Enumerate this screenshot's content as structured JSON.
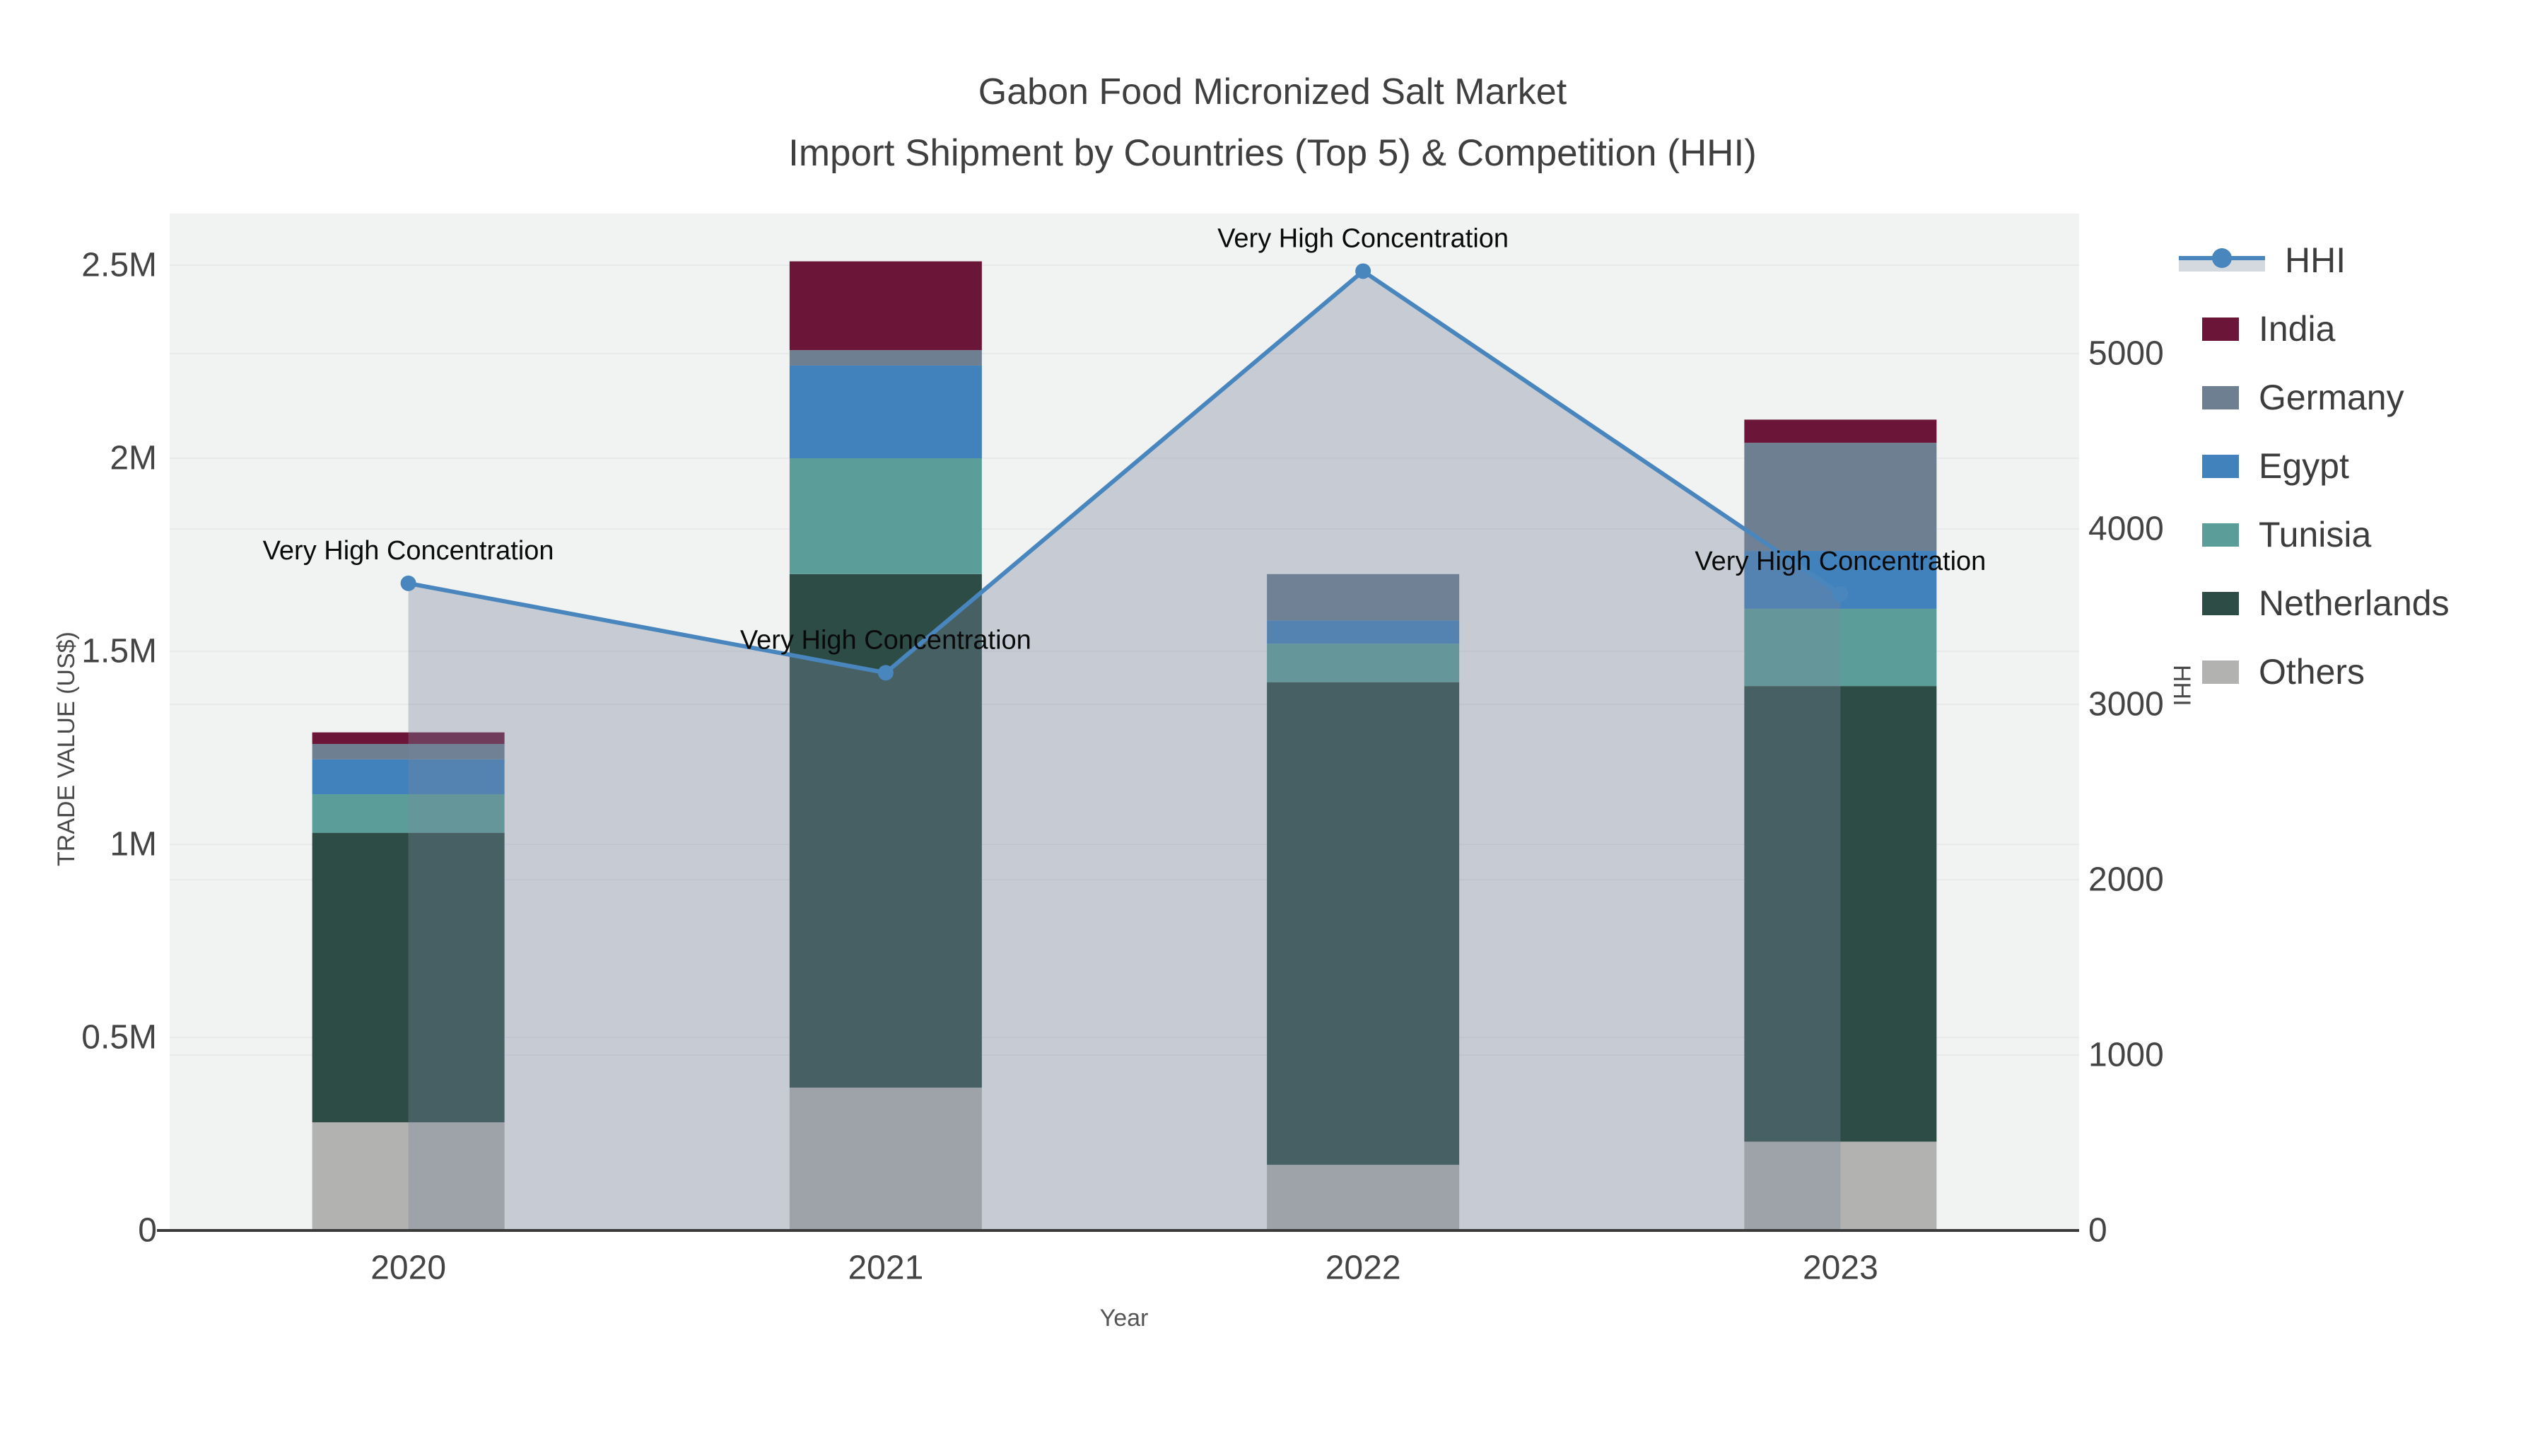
{
  "title": {
    "line1": "Gabon Food Micronized Salt Market",
    "line2": "Import Shipment by Countries (Top 5) & Competition (HHI)"
  },
  "chart_data": {
    "type": "bar+line",
    "subtype": "stacked bars (trade value) with HHI line and shaded area overlay",
    "categories": [
      "2020",
      "2021",
      "2022",
      "2023"
    ],
    "values_unit": "million US$",
    "series": [
      {
        "name": "Others",
        "color": "#b2b2b0",
        "values": [
          0.28,
          0.37,
          0.17,
          0.23
        ]
      },
      {
        "name": "Netherlands",
        "color": "#2d4c45",
        "values": [
          0.75,
          1.33,
          1.25,
          1.18
        ]
      },
      {
        "name": "Tunisia",
        "color": "#5b9e99",
        "values": [
          0.1,
          0.3,
          0.1,
          0.2
        ]
      },
      {
        "name": "Egypt",
        "color": "#4181bc",
        "values": [
          0.09,
          0.24,
          0.06,
          0.15
        ]
      },
      {
        "name": "Germany",
        "color": "#6e7f91",
        "values": [
          0.04,
          0.04,
          0.12,
          0.28
        ]
      },
      {
        "name": "India",
        "color": "#6b1638",
        "values": [
          0.03,
          0.23,
          0.0,
          0.06
        ]
      }
    ],
    "hhi_line": {
      "name": "HHI",
      "color": "#4a86be",
      "area_fill": "rgba(120,135,158,0.35)",
      "values": [
        3690,
        3180,
        5470,
        3630
      ]
    },
    "annotations": [
      {
        "text": "Very High Concentration",
        "category": "2020"
      },
      {
        "text": "Very High Concentration",
        "category": "2021"
      },
      {
        "text": "Very High Concentration",
        "category": "2022"
      },
      {
        "text": "Very High Concentration",
        "category": "2023"
      }
    ],
    "y_left": {
      "label": "TRADE VALUE (US$)",
      "ticks": [
        "0",
        "0.5M",
        "1M",
        "1.5M",
        "2M",
        "2.5M"
      ],
      "tick_values_m": [
        0,
        0.5,
        1.0,
        1.5,
        2.0,
        2.5
      ]
    },
    "y_right": {
      "label": "HHI",
      "ticks": [
        "0",
        "1000",
        "2000",
        "3000",
        "4000",
        "5000"
      ],
      "tick_values": [
        0,
        1000,
        2000,
        3000,
        4000,
        5000
      ]
    },
    "x_axis": {
      "label": "Year"
    },
    "legend": [
      {
        "label": "HHI",
        "type": "line",
        "color": "#4a86be"
      },
      {
        "label": "India",
        "type": "patch",
        "color": "#6b1638"
      },
      {
        "label": "Germany",
        "type": "patch",
        "color": "#6e7f91"
      },
      {
        "label": "Egypt",
        "type": "patch",
        "color": "#4181bc"
      },
      {
        "label": "Tunisia",
        "type": "patch",
        "color": "#5b9e99"
      },
      {
        "label": "Netherlands",
        "type": "patch",
        "color": "#2d4c45"
      },
      {
        "label": "Others",
        "type": "patch",
        "color": "#b2b2b0"
      }
    ],
    "layout_hints": {
      "plot_background": "#f1f2f2",
      "figure_background": "#ffffff",
      "gridline_color": "#e7e9ea",
      "axis_line_color": "#3b3b3b",
      "tick_label_color": "#444444",
      "annotation_color": "#0a0a0a",
      "grid": "on",
      "legend_position": "right"
    }
  }
}
